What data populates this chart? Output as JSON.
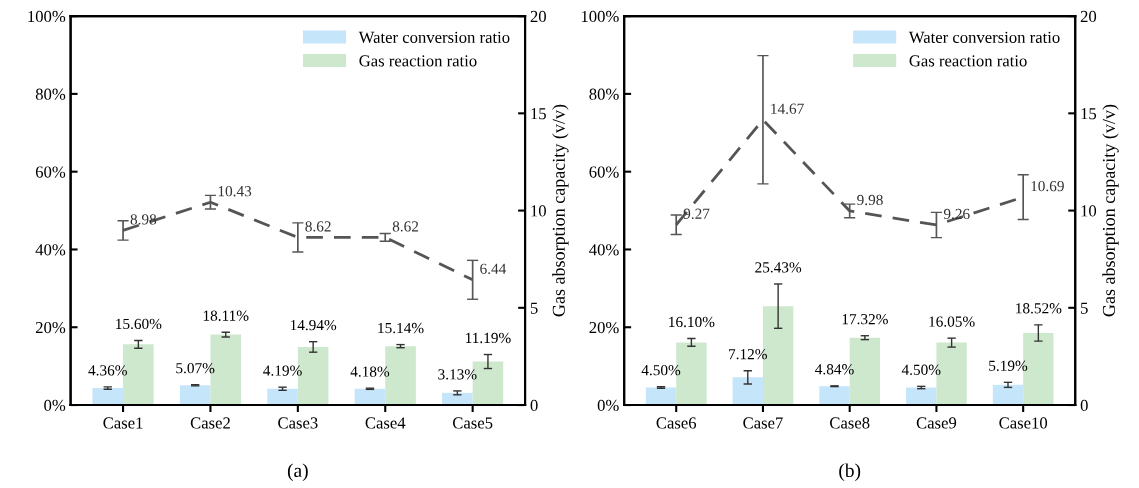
{
  "chart_data": [
    {
      "type": "bar",
      "annotations": [
        "(a)"
      ],
      "y2label": "Gas absorption capacity (v/v)",
      "categories": [
        "Case1",
        "Case2",
        "Case3",
        "Case4",
        "Case5"
      ],
      "series": [
        {
          "name": "Water conversion ratio",
          "color": "#c5e5fb",
          "values": [
            4.36,
            5.07,
            4.19,
            4.18,
            3.13
          ],
          "errors": [
            0.3,
            0.15,
            0.4,
            0.15,
            0.5
          ],
          "value_labels": [
            "4.36%",
            "5.07%",
            "4.19%",
            "4.18%",
            "3.13%"
          ]
        },
        {
          "name": "Gas reaction ratio",
          "color": "#cde8cc",
          "values": [
            15.6,
            18.11,
            14.94,
            15.14,
            11.19
          ],
          "errors": [
            1.0,
            0.6,
            1.35,
            0.4,
            1.8
          ],
          "value_labels": [
            "15.60%",
            "18.11%",
            "14.94%",
            "15.14%",
            "11.19%"
          ]
        },
        {
          "type": "line",
          "axis": "y2",
          "color": "#555555",
          "line_style": "dashed",
          "values": [
            8.98,
            10.43,
            8.62,
            8.62,
            6.44
          ],
          "errors": [
            0.5,
            0.35,
            0.75,
            0.2,
            1.0
          ],
          "value_labels": [
            "8.98",
            "10.43",
            "8.62",
            "8.62",
            "6.44"
          ]
        }
      ],
      "ylim": [
        0,
        100
      ],
      "yticks": [
        {
          "value": 0,
          "label": "0%"
        },
        {
          "value": 20,
          "label": "20%"
        },
        {
          "value": 40,
          "label": "40%"
        },
        {
          "value": 60,
          "label": "60%"
        },
        {
          "value": 80,
          "label": "80%"
        },
        {
          "value": 100,
          "label": "100%"
        }
      ],
      "y2lim": [
        0,
        20
      ],
      "y2ticks": [
        0,
        5,
        10,
        15,
        20
      ],
      "legend": "top right",
      "grid": false
    },
    {
      "type": "bar",
      "annotations": [
        "(b)"
      ],
      "y2label": "Gas absorption capacity (v/v)",
      "categories": [
        "Case6",
        "Case7",
        "Case8",
        "Case9",
        "Case10"
      ],
      "series": [
        {
          "name": "Water conversion ratio",
          "color": "#c5e5fb",
          "values": [
            4.5,
            7.12,
            4.84,
            4.5,
            5.19
          ],
          "errors": [
            0.2,
            1.7,
            0.1,
            0.3,
            0.65
          ],
          "value_labels": [
            "4.50%",
            "7.12%",
            "4.84%",
            "4.50%",
            "5.19%"
          ]
        },
        {
          "name": "Gas reaction ratio",
          "color": "#cde8cc",
          "values": [
            16.1,
            25.43,
            17.32,
            16.05,
            18.52
          ],
          "errors": [
            1.0,
            5.7,
            0.5,
            1.15,
            2.1
          ],
          "value_labels": [
            "16.10%",
            "25.43%",
            "17.32%",
            "16.05%",
            "18.52%"
          ]
        },
        {
          "type": "line",
          "axis": "y2",
          "color": "#555555",
          "line_style": "dashed",
          "values": [
            9.27,
            14.67,
            9.98,
            9.26,
            10.69
          ],
          "errors": [
            0.5,
            3.3,
            0.35,
            0.65,
            1.15
          ],
          "value_labels": [
            "9.27",
            "14.67",
            "9.98",
            "9.26",
            "10.69"
          ]
        }
      ],
      "ylim": [
        0,
        100
      ],
      "yticks": [
        {
          "value": 0,
          "label": "0%"
        },
        {
          "value": 20,
          "label": "20%"
        },
        {
          "value": 40,
          "label": "40%"
        },
        {
          "value": 60,
          "label": "60%"
        },
        {
          "value": 80,
          "label": "80%"
        },
        {
          "value": 100,
          "label": "100%"
        }
      ],
      "y2lim": [
        0,
        20
      ],
      "y2ticks": [
        0,
        5,
        10,
        15,
        20
      ],
      "legend": "top right",
      "grid": false
    }
  ]
}
